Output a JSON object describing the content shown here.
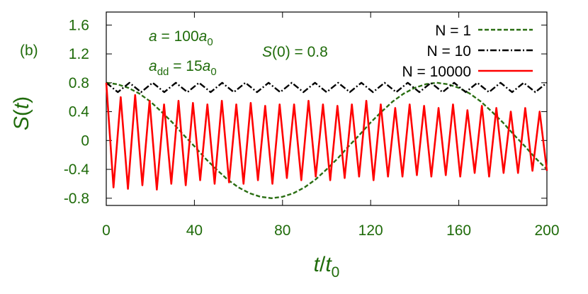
{
  "chart_data": {
    "type": "line",
    "ylabel": [
      "S",
      "(",
      "t",
      ")"
    ],
    "xlabel": [
      "t",
      "/",
      "t",
      "0"
    ],
    "annotations": [
      [
        "(b)"
      ],
      [
        "a",
        " = 100",
        "a",
        "0"
      ],
      [
        "a",
        "dd",
        " = 15",
        "a",
        "0"
      ],
      [
        "S",
        "(0) = 0.8"
      ]
    ],
    "xlim": [
      0,
      200
    ],
    "xticks": [
      0,
      40,
      80,
      120,
      160,
      200
    ],
    "ylim": [
      -0.9,
      1.78
    ],
    "yticks": [
      -0.8,
      -0.4,
      0,
      0.4,
      0.8,
      1.2,
      1.6
    ],
    "legend": "top-right",
    "series": [
      {
        "name": "N = 1",
        "color": "#2a6e12",
        "style": "dashed",
        "x": [
          0,
          5,
          10,
          15,
          20,
          25,
          30,
          35,
          40,
          45,
          50,
          55,
          60,
          65,
          70,
          75,
          80,
          85,
          90,
          95,
          100,
          105,
          110,
          115,
          120,
          125,
          130,
          135,
          140,
          145,
          150,
          155,
          160,
          165,
          170,
          175,
          180,
          185,
          190,
          195,
          200
        ],
        "values": [
          0.8,
          0.78,
          0.73,
          0.65,
          0.54,
          0.4,
          0.25,
          0.08,
          -0.08,
          -0.25,
          -0.4,
          -0.54,
          -0.65,
          -0.73,
          -0.78,
          -0.8,
          -0.78,
          -0.73,
          -0.65,
          -0.54,
          -0.4,
          -0.25,
          -0.08,
          0.08,
          0.25,
          0.4,
          0.54,
          0.65,
          0.73,
          0.78,
          0.8,
          0.78,
          0.73,
          0.65,
          0.54,
          0.4,
          0.25,
          0.08,
          -0.08,
          -0.25,
          -0.4
        ]
      },
      {
        "name": "N = 10",
        "color": "#000000",
        "style": "dashdot",
        "x": [
          0,
          5.26,
          10.53,
          15.79,
          21.05,
          26.32,
          31.58,
          36.84,
          42.11,
          47.37,
          52.63,
          57.89,
          63.16,
          68.42,
          73.68,
          78.95,
          84.21,
          89.47,
          94.74,
          100,
          105.26,
          110.53,
          115.79,
          121.05,
          126.32,
          131.58,
          136.84,
          142.11,
          147.37,
          152.63,
          157.89,
          163.16,
          168.42,
          173.68,
          178.95,
          184.21,
          189.47,
          194.74,
          200
        ],
        "values": [
          0.8,
          0.67,
          0.8,
          0.67,
          0.8,
          0.67,
          0.8,
          0.67,
          0.8,
          0.67,
          0.8,
          0.67,
          0.8,
          0.67,
          0.8,
          0.67,
          0.8,
          0.67,
          0.8,
          0.67,
          0.8,
          0.67,
          0.8,
          0.67,
          0.8,
          0.67,
          0.8,
          0.67,
          0.8,
          0.67,
          0.8,
          0.67,
          0.8,
          0.67,
          0.8,
          0.67,
          0.8,
          0.67,
          0.8
        ]
      },
      {
        "name": "N = 10000",
        "color": "#ff0000",
        "style": "solid",
        "x": [
          0,
          3.28,
          6.56,
          9.84,
          13.11,
          16.39,
          19.67,
          22.95,
          26.23,
          29.51,
          32.79,
          36.07,
          39.34,
          42.62,
          45.9,
          49.18,
          52.46,
          55.74,
          59.02,
          62.3,
          65.57,
          68.85,
          72.13,
          75.41,
          78.69,
          81.97,
          85.25,
          88.52,
          91.8,
          95.08,
          98.36,
          101.64,
          104.92,
          108.2,
          111.48,
          114.75,
          118.03,
          121.31,
          124.59,
          127.87,
          131.15,
          134.43,
          137.7,
          140.98,
          144.26,
          147.54,
          150.82,
          154.1,
          157.38,
          160.66,
          163.93,
          167.21,
          170.49,
          173.77,
          177.05,
          180.33,
          183.61,
          186.89,
          190.16,
          193.44,
          196.72,
          200
        ],
        "values": [
          0.8,
          -0.65,
          0.6,
          -0.67,
          0.63,
          -0.62,
          0.55,
          -0.68,
          0.5,
          -0.6,
          0.55,
          -0.62,
          0.52,
          -0.55,
          0.5,
          -0.6,
          0.55,
          -0.58,
          0.5,
          -0.6,
          0.52,
          -0.55,
          0.48,
          -0.6,
          0.5,
          -0.52,
          0.5,
          -0.55,
          0.55,
          -0.5,
          0.5,
          -0.55,
          0.48,
          -0.52,
          0.5,
          -0.5,
          0.55,
          -0.55,
          0.5,
          -0.5,
          0.45,
          -0.5,
          0.5,
          -0.48,
          0.48,
          -0.5,
          0.45,
          -0.48,
          0.5,
          -0.5,
          0.42,
          -0.45,
          0.48,
          -0.5,
          0.45,
          -0.45,
          0.4,
          -0.45,
          0.45,
          -0.42,
          0.4,
          -0.42
        ]
      }
    ]
  }
}
